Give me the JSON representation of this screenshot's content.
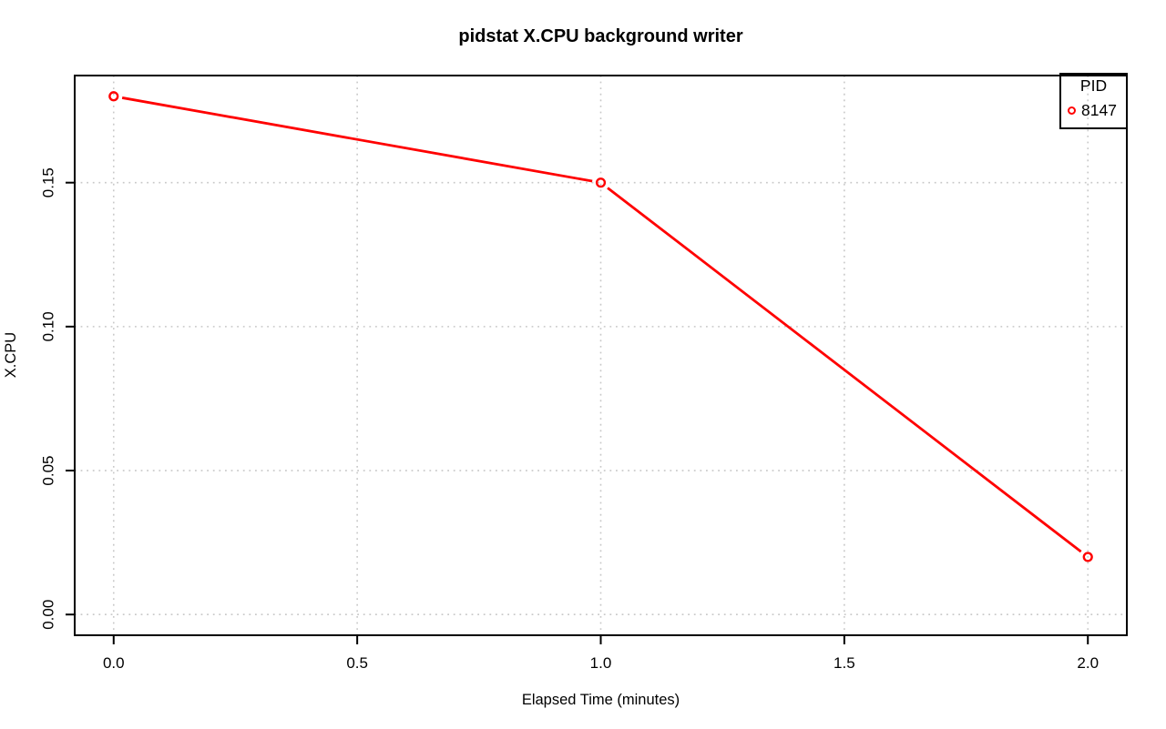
{
  "chart_data": {
    "type": "line",
    "title": "pidstat X.CPU background writer",
    "xlabel": "Elapsed Time (minutes)",
    "ylabel": "X.CPU",
    "x": [
      0.0,
      1.0,
      2.0
    ],
    "series": [
      {
        "name": "8147",
        "color": "#FF0000",
        "marker": "open-circle",
        "values": [
          0.18,
          0.15,
          0.02
        ]
      }
    ],
    "xticks": {
      "values": [
        0.0,
        0.5,
        1.0,
        1.5,
        2.0
      ],
      "labels": [
        "0.0",
        "0.5",
        "1.0",
        "1.5",
        "2.0"
      ]
    },
    "yticks": {
      "values": [
        0.0,
        0.05,
        0.1,
        0.15
      ],
      "labels": [
        "0.00",
        "0.05",
        "0.10",
        "0.15"
      ]
    },
    "xlim": [
      -0.08,
      2.08
    ],
    "ylim": [
      -0.0072,
      0.1872
    ],
    "grid": {
      "show": true,
      "style": "dotted",
      "color": "#C8C8C8"
    },
    "legend": {
      "title": "PID",
      "position": "top-right",
      "entries": [
        {
          "label": "8147",
          "color": "#FF0000",
          "marker": "open-circle"
        }
      ]
    },
    "colors": {
      "axis": "#000000",
      "text": "#000000",
      "background": "#FFFFFF"
    }
  }
}
